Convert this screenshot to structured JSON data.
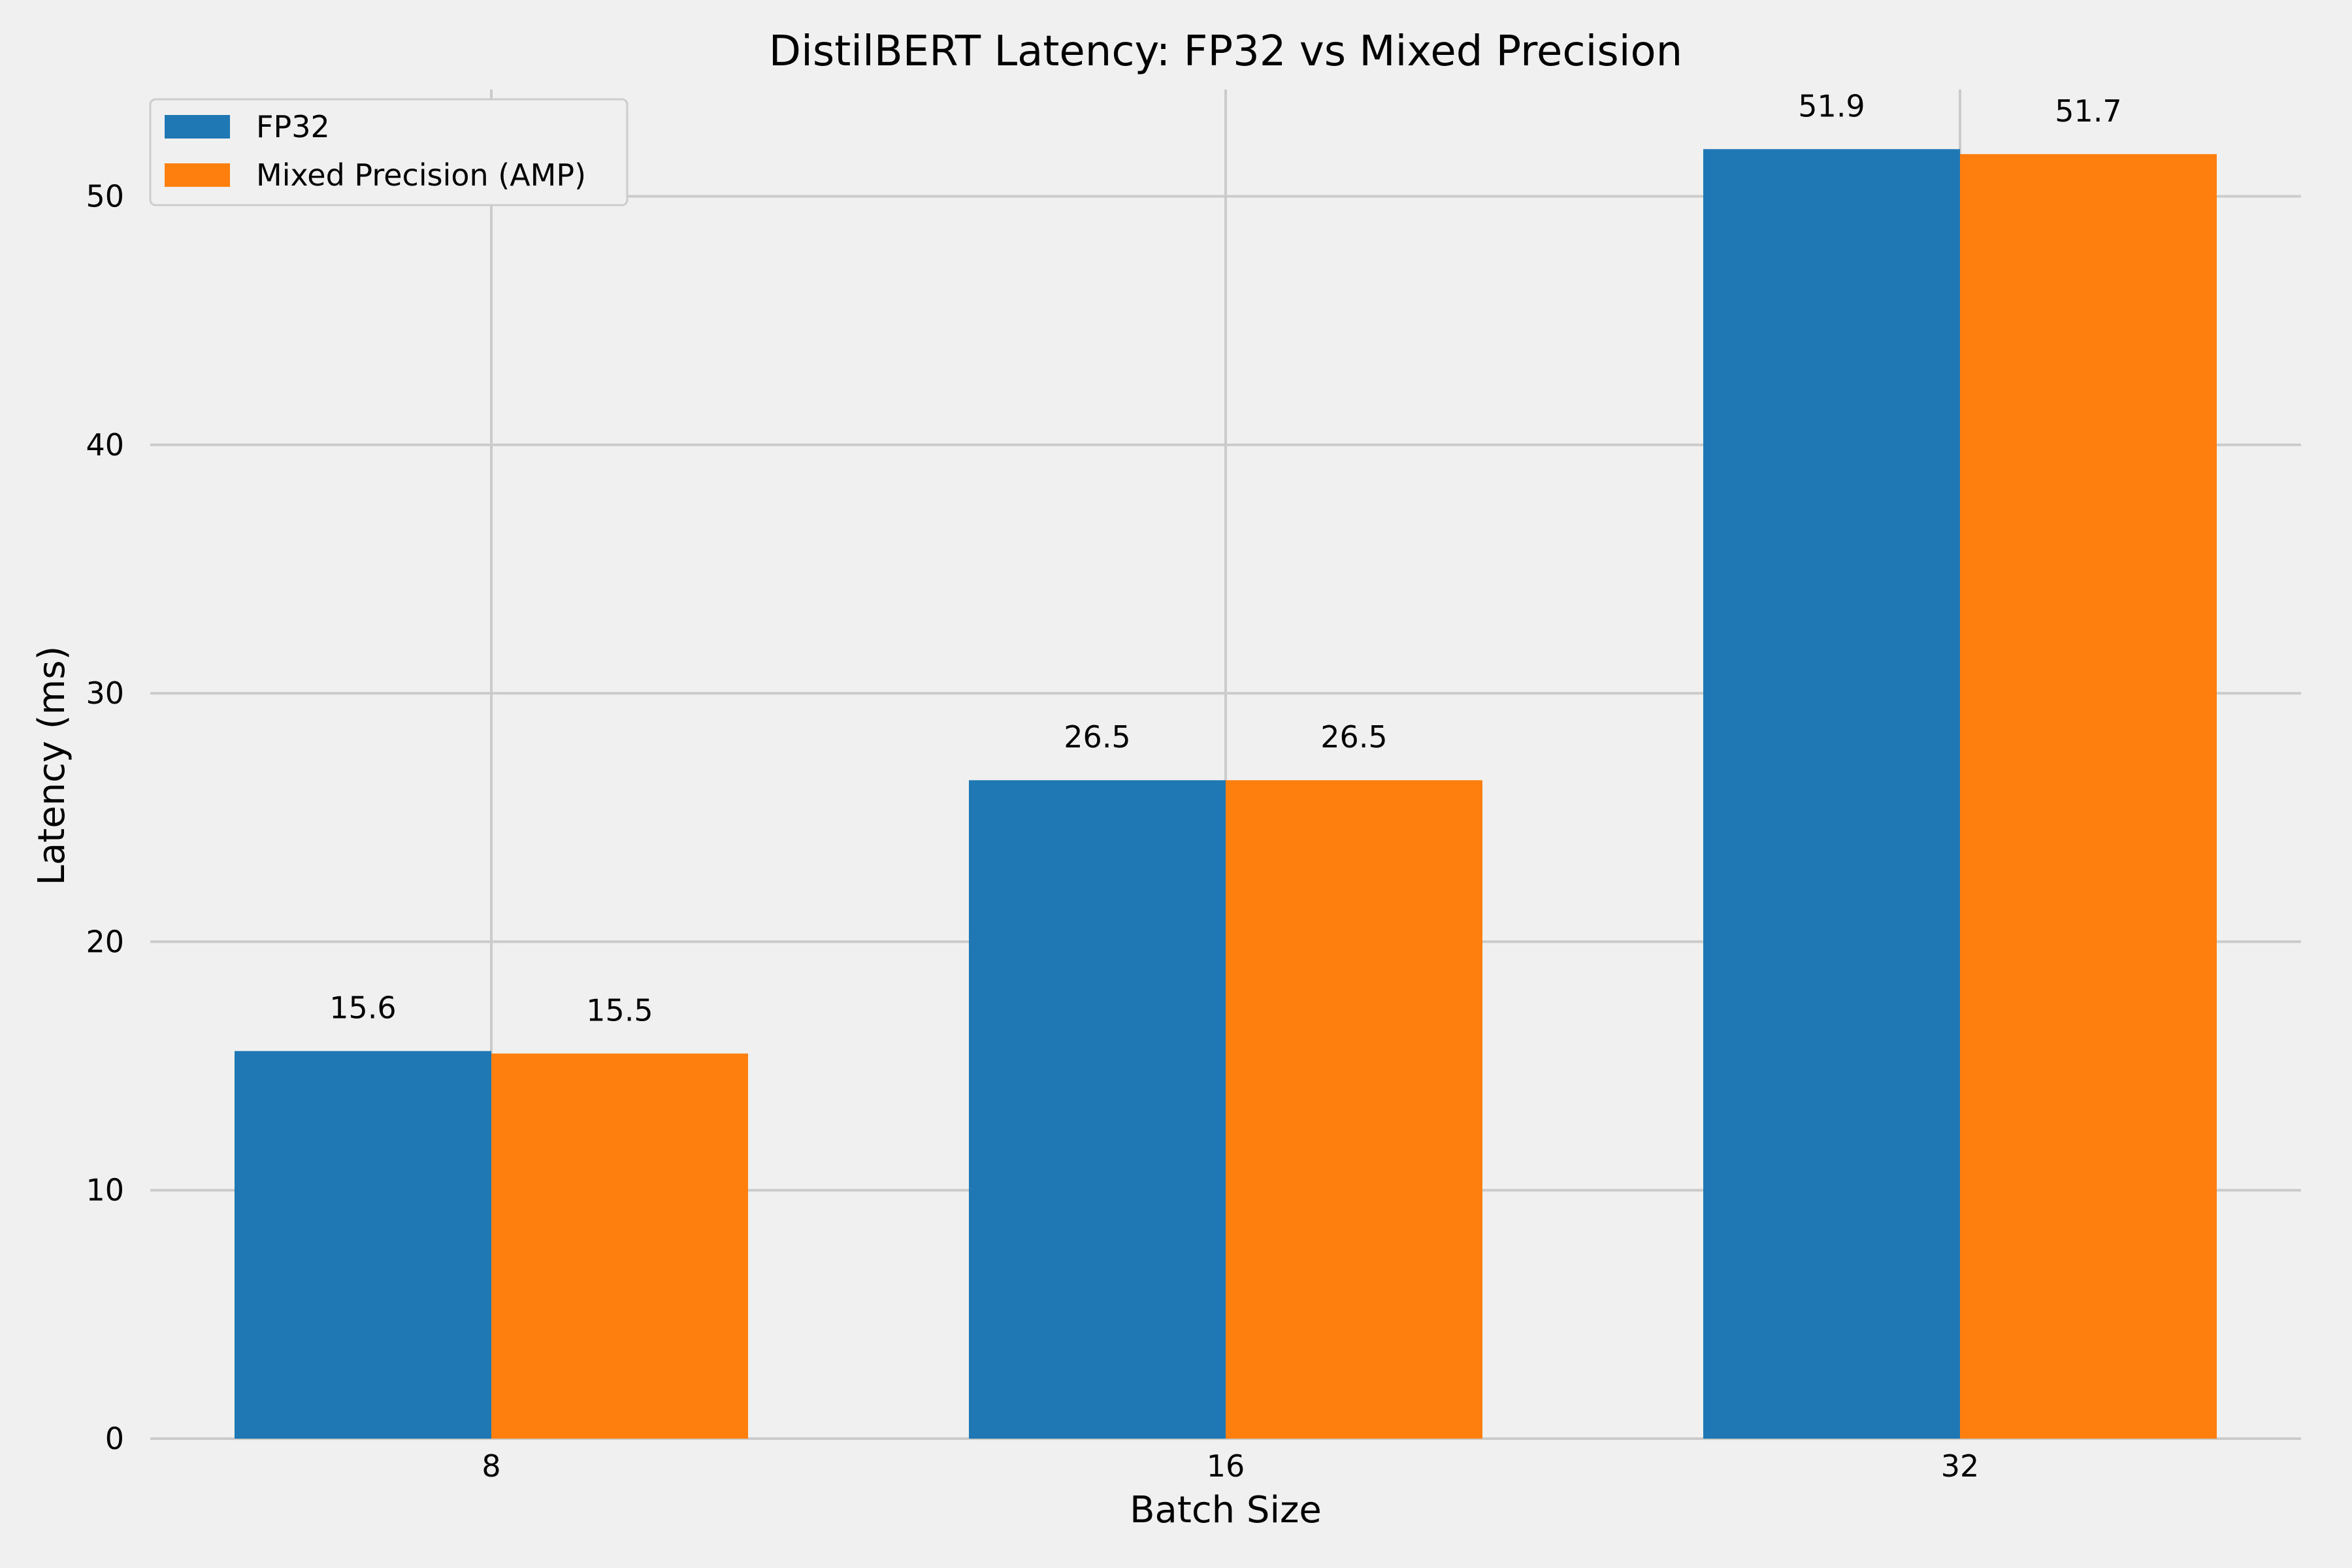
{
  "chart_data": {
    "type": "bar",
    "title": "DistilBERT Latency: FP32 vs Mixed Precision",
    "xlabel": "Batch Size",
    "ylabel": "Latency (ms)",
    "categories": [
      "8",
      "16",
      "32"
    ],
    "series": [
      {
        "name": "FP32",
        "values": [
          15.6,
          26.5,
          51.9
        ],
        "labels": [
          "15.6",
          "26.5",
          "51.9"
        ],
        "color": "#1f77b4"
      },
      {
        "name": "Mixed Precision (AMP)",
        "values": [
          15.5,
          26.5,
          51.7
        ],
        "labels": [
          "15.5",
          "26.5",
          "51.7"
        ],
        "color": "#ff7f0e"
      }
    ],
    "ylim": [
      0,
      54.3
    ],
    "yticks": [
      0,
      10,
      20,
      30,
      40,
      50
    ],
    "ytick_labels": [
      "0",
      "10",
      "20",
      "30",
      "40",
      "50"
    ],
    "grid": true,
    "legend_position": "top-left",
    "background_color": "#f0f0f0",
    "grid_color": "#cbcbcb"
  }
}
